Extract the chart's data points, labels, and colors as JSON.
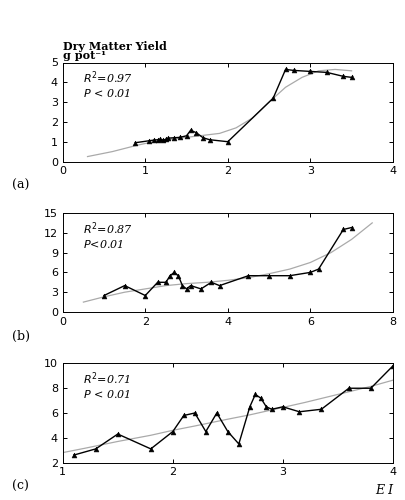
{
  "panel_a": {
    "label": "(a)",
    "r2": "$R^2$=0.97",
    "p": "$P$ < 0.01",
    "xlim": [
      0,
      4
    ],
    "ylim": [
      0,
      5
    ],
    "xticks": [
      0,
      1,
      2,
      3,
      4
    ],
    "yticks": [
      0,
      1,
      2,
      3,
      4,
      5
    ],
    "data_x": [
      0.88,
      1.05,
      1.1,
      1.15,
      1.18,
      1.22,
      1.25,
      1.28,
      1.35,
      1.42,
      1.5,
      1.55,
      1.62,
      1.7,
      1.78,
      2.0,
      2.55,
      2.7,
      2.8,
      3.0,
      3.2,
      3.4,
      3.5
    ],
    "data_y": [
      0.95,
      1.05,
      1.08,
      1.1,
      1.12,
      1.08,
      1.12,
      1.18,
      1.2,
      1.22,
      1.3,
      1.58,
      1.45,
      1.2,
      1.1,
      1.0,
      3.2,
      4.65,
      4.6,
      4.55,
      4.5,
      4.3,
      4.25
    ],
    "poly_x": [
      0.3,
      0.6,
      0.9,
      1.1,
      1.3,
      1.5,
      1.7,
      1.9,
      2.1,
      2.3,
      2.5,
      2.7,
      2.9,
      3.1,
      3.3,
      3.5
    ],
    "poly_y": [
      0.25,
      0.5,
      0.82,
      1.0,
      1.12,
      1.22,
      1.32,
      1.42,
      1.7,
      2.2,
      3.0,
      3.75,
      4.25,
      4.58,
      4.65,
      4.58
    ]
  },
  "panel_b": {
    "label": "(b)",
    "r2": "$R^2$=0.87",
    "p": "$P$<0.01",
    "xlim": [
      0,
      8
    ],
    "ylim": [
      0,
      15
    ],
    "xticks": [
      0,
      2,
      4,
      6,
      8
    ],
    "yticks": [
      0,
      3,
      6,
      9,
      12,
      15
    ],
    "data_x": [
      1.0,
      1.5,
      2.0,
      2.3,
      2.5,
      2.6,
      2.7,
      2.8,
      2.9,
      3.0,
      3.1,
      3.35,
      3.6,
      3.8,
      4.5,
      5.0,
      5.5,
      6.0,
      6.2,
      6.8,
      7.0
    ],
    "data_y": [
      2.5,
      4.0,
      2.5,
      4.5,
      4.5,
      5.5,
      6.0,
      5.5,
      4.0,
      3.5,
      4.0,
      3.5,
      4.5,
      4.0,
      5.5,
      5.5,
      5.5,
      6.0,
      6.5,
      12.5,
      12.8
    ],
    "poly_x": [
      0.5,
      1.0,
      1.5,
      2.0,
      2.5,
      3.0,
      3.5,
      4.0,
      4.5,
      5.0,
      5.5,
      6.0,
      6.5,
      7.0,
      7.5
    ],
    "poly_y": [
      1.5,
      2.3,
      3.0,
      3.5,
      4.0,
      4.3,
      4.5,
      4.8,
      5.2,
      5.8,
      6.5,
      7.5,
      9.0,
      11.0,
      13.5
    ]
  },
  "panel_c": {
    "label": "(c)",
    "r2": "$R^2$=0.71",
    "p": "$P$ < 0.01",
    "xlim": [
      1,
      4
    ],
    "ylim": [
      2,
      10
    ],
    "xticks": [
      1,
      2,
      3,
      4
    ],
    "yticks": [
      2,
      4,
      6,
      8,
      10
    ],
    "data_x": [
      1.1,
      1.3,
      1.5,
      1.8,
      2.0,
      2.1,
      2.2,
      2.3,
      2.4,
      2.5,
      2.6,
      2.7,
      2.75,
      2.8,
      2.85,
      2.9,
      3.0,
      3.15,
      3.35,
      3.6,
      3.8,
      4.0
    ],
    "data_y": [
      2.6,
      3.1,
      4.3,
      3.1,
      4.5,
      5.8,
      6.0,
      4.5,
      6.0,
      4.5,
      3.5,
      6.5,
      7.5,
      7.2,
      6.5,
      6.3,
      6.5,
      6.1,
      6.3,
      8.0,
      8.0,
      9.8
    ],
    "poly_x": [
      1.0,
      1.2,
      1.5,
      1.8,
      2.0,
      2.2,
      2.5,
      2.7,
      3.0,
      3.2,
      3.5,
      3.8,
      4.0
    ],
    "poly_y": [
      2.8,
      3.15,
      3.7,
      4.2,
      4.6,
      4.95,
      5.5,
      5.85,
      6.45,
      6.85,
      7.5,
      8.15,
      8.65
    ]
  },
  "ylabel_top": "Dry Matter Yield",
  "ylabel_bot": "g pot⁻¹",
  "xlabel": "E I",
  "line_color": "black",
  "poly_color": "#aaaaaa",
  "markersize": 3.5
}
